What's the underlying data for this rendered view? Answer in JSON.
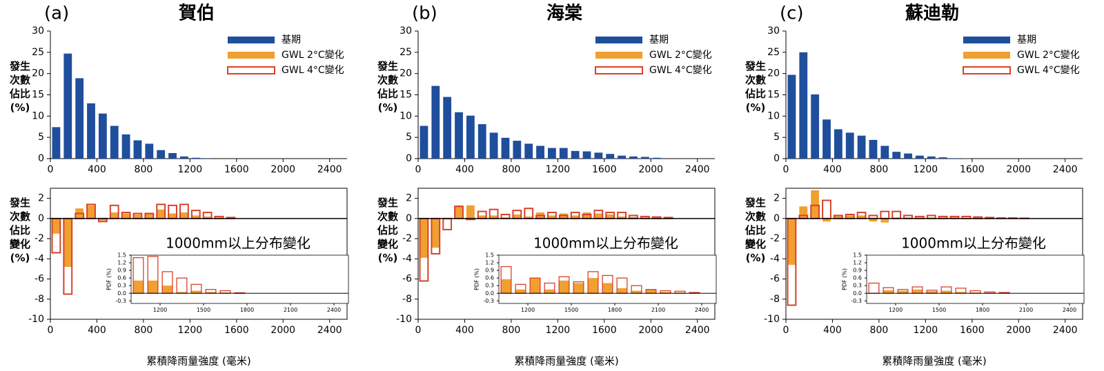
{
  "chart_data": [
    {
      "type": "bar",
      "label": "(a)",
      "title": "賀伯",
      "ylabel": "發生次數佔比(%)",
      "legend": "upper right",
      "x": [
        50,
        150,
        250,
        350,
        450,
        550,
        650,
        750,
        850,
        950,
        1050,
        1150,
        1250,
        1350
      ],
      "series": [
        {
          "name": "基期",
          "color": "#1f4e9c",
          "values": [
            7.4,
            24.7,
            18.9,
            13.0,
            10.6,
            7.7,
            5.7,
            4.3,
            3.5,
            2.0,
            1.3,
            0.5,
            0.2,
            0.1
          ]
        }
      ],
      "xlim": [
        0,
        2550
      ],
      "ylim": [
        0,
        30
      ],
      "xticks": [
        0,
        400,
        800,
        1200,
        1600,
        2000,
        2400
      ],
      "yticks": [
        0,
        5,
        10,
        15,
        20,
        25,
        30
      ]
    },
    {
      "type": "bar",
      "ylabel": "發生次數佔比變化(%)",
      "xlabel": "累積降雨量強度 (毫米)",
      "x": [
        50,
        150,
        250,
        350,
        450,
        550,
        650,
        750,
        850,
        950,
        1050,
        1150,
        1250,
        1350,
        1450,
        1550
      ],
      "series": [
        {
          "name": "GWL 2°C變化",
          "color": "#f0a030",
          "values": [
            -1.5,
            -4.8,
            1.0,
            1.3,
            -0.2,
            0.6,
            0.5,
            0.4,
            0.5,
            0.9,
            0.5,
            0.6,
            0.3,
            0.2,
            0.1,
            0.05
          ]
        },
        {
          "name": "GWL 4°C變化",
          "color": "#d9402a",
          "outline": true,
          "values": [
            -3.4,
            -7.5,
            0.5,
            1.4,
            -0.3,
            1.3,
            0.6,
            0.5,
            0.5,
            1.4,
            1.3,
            1.4,
            0.8,
            0.6,
            0.2,
            0.1
          ]
        }
      ],
      "xlim": [
        0,
        2550
      ],
      "ylim": [
        -10,
        3
      ],
      "xticks": [
        0,
        400,
        800,
        1200,
        1600,
        2000,
        2400
      ],
      "yticks": [
        -10,
        -8,
        -6,
        -4,
        -2,
        0,
        2
      ]
    },
    {
      "type": "bar",
      "title": "1000mm以上分布變化",
      "ylabel": "PDF (%)",
      "x": [
        1050,
        1150,
        1250,
        1350,
        1450,
        1550,
        1650,
        1750
      ],
      "series": [
        {
          "color": "#f0a030",
          "values": [
            0.5,
            0.5,
            0.3,
            0.05,
            0.1,
            0.05,
            0.03,
            0
          ]
        },
        {
          "color": "#d9402a",
          "outline": true,
          "values": [
            1.4,
            1.45,
            0.85,
            0.6,
            0.35,
            0.15,
            0.1,
            0.02
          ]
        }
      ],
      "xlim": [
        1000,
        2500
      ],
      "ylim": [
        -0.4,
        1.5
      ],
      "xticks": [
        1200,
        1500,
        1800,
        2100,
        2400
      ],
      "yticks": [
        -0.3,
        {
          "value": 0,
          "label": "0.0"
        },
        0.3,
        0.6,
        0.9,
        1.2,
        1.5
      ]
    },
    {
      "type": "bar",
      "label": "(b)",
      "title": "海棠",
      "ylabel": "發生次數佔比(%)",
      "legend": "upper right",
      "x": [
        50,
        150,
        250,
        350,
        450,
        550,
        650,
        750,
        850,
        950,
        1050,
        1150,
        1250,
        1350,
        1450,
        1550,
        1650,
        1750,
        1850,
        1950,
        2050
      ],
      "series": [
        {
          "name": "基期",
          "color": "#1f4e9c",
          "values": [
            7.7,
            17.1,
            14.5,
            10.9,
            10.1,
            8.1,
            6.1,
            4.9,
            4.2,
            3.5,
            3.0,
            2.5,
            2.5,
            1.8,
            1.7,
            1.4,
            1.1,
            0.7,
            0.5,
            0.4,
            0.2
          ]
        }
      ],
      "xlim": [
        0,
        2550
      ],
      "ylim": [
        0,
        30
      ],
      "xticks": [
        0,
        400,
        800,
        1200,
        1600,
        2000,
        2400
      ],
      "yticks": [
        0,
        5,
        10,
        15,
        20,
        25,
        30
      ]
    },
    {
      "type": "bar",
      "ylabel": "發生次數佔比變化(%)",
      "xlabel": "累積降雨量強度 (毫米)",
      "x": [
        50,
        150,
        250,
        350,
        450,
        550,
        650,
        750,
        850,
        950,
        1050,
        1150,
        1250,
        1350,
        1450,
        1550,
        1650,
        1750,
        1850,
        1950,
        2050,
        2150
      ],
      "series": [
        {
          "name": "GWL 2°C變化",
          "color": "#f0a030",
          "values": [
            -3.9,
            -2.9,
            -0.1,
            1.3,
            1.3,
            0.3,
            0.3,
            0.1,
            0.4,
            0.2,
            0.6,
            0.3,
            0.5,
            0.3,
            0.6,
            0.5,
            0.4,
            0.2,
            0.15,
            0.1,
            0.05,
            0
          ]
        },
        {
          "name": "GWL 4°C變化",
          "color": "#d9402a",
          "outline": true,
          "values": [
            -6.2,
            -3.5,
            -1.1,
            1.2,
            -0.1,
            0.7,
            0.9,
            0.4,
            0.8,
            1.0,
            0.3,
            0.6,
            0.3,
            0.6,
            0.4,
            0.8,
            0.6,
            0.6,
            0.3,
            0.2,
            0.15,
            0.1
          ]
        }
      ],
      "xlim": [
        0,
        2550
      ],
      "ylim": [
        -10,
        3
      ],
      "xticks": [
        0,
        400,
        800,
        1200,
        1600,
        2000,
        2400
      ],
      "yticks": [
        -10,
        -8,
        -6,
        -4,
        -2,
        0,
        2
      ]
    },
    {
      "type": "bar",
      "title": "1000mm以上分布變化",
      "ylabel": "PDF (%)",
      "x": [
        1050,
        1150,
        1250,
        1350,
        1450,
        1550,
        1650,
        1750,
        1850,
        1950,
        2050,
        2150,
        2250,
        2350
      ],
      "series": [
        {
          "color": "#f0a030",
          "values": [
            0.55,
            0.15,
            0.6,
            0.15,
            0.5,
            0.4,
            0.6,
            0.4,
            0.2,
            0.1,
            0.15,
            0.05,
            0.03,
            0
          ]
        },
        {
          "color": "#d9402a",
          "outline": true,
          "values": [
            1.05,
            0.35,
            0.6,
            0.4,
            0.65,
            0.45,
            0.85,
            0.7,
            0.6,
            0.3,
            0.15,
            0.1,
            0.08,
            0.03
          ]
        }
      ],
      "xlim": [
        1000,
        2500
      ],
      "ylim": [
        -0.4,
        1.5
      ],
      "xticks": [
        1200,
        1500,
        1800,
        2100,
        2400
      ],
      "yticks": [
        -0.3,
        {
          "value": 0,
          "label": "0.0"
        },
        0.3,
        0.6,
        0.9,
        1.2,
        1.5
      ]
    },
    {
      "type": "bar",
      "label": "(c)",
      "title": "蘇迪勒",
      "ylabel": "發生次數佔比(%)",
      "legend": "upper right",
      "x": [
        50,
        150,
        250,
        350,
        450,
        550,
        650,
        750,
        850,
        950,
        1050,
        1150,
        1250,
        1350,
        1450,
        1550
      ],
      "series": [
        {
          "name": "基期",
          "color": "#1f4e9c",
          "values": [
            19.7,
            25.0,
            15.1,
            9.2,
            6.9,
            6.1,
            5.4,
            4.4,
            3.0,
            1.6,
            1.2,
            0.7,
            0.5,
            0.3,
            0.1,
            0.05
          ]
        }
      ],
      "xlim": [
        0,
        2550
      ],
      "ylim": [
        0,
        30
      ],
      "xticks": [
        0,
        400,
        800,
        1200,
        1600,
        2000,
        2400
      ],
      "yticks": [
        0,
        5,
        10,
        15,
        20,
        25,
        30
      ]
    },
    {
      "type": "bar",
      "ylabel": "發生次數佔比變化(%)",
      "xlabel": "累積降雨量強度 (毫米)",
      "x": [
        50,
        150,
        250,
        350,
        450,
        550,
        650,
        750,
        850,
        950,
        1050,
        1150,
        1250,
        1350,
        1450,
        1550,
        1650,
        1750,
        1850,
        1950,
        2050
      ],
      "series": [
        {
          "name": "GWL 2°C變化",
          "color": "#f0a030",
          "values": [
            -4.6,
            1.2,
            2.8,
            -0.3,
            0.3,
            0.3,
            0.3,
            -0.3,
            -0.4,
            0.1,
            0.1,
            0.1,
            0.1,
            0.1,
            0.1,
            0.05,
            0.05,
            0.03,
            0.02,
            0.01,
            0.01
          ]
        },
        {
          "name": "GWL 4°C變化",
          "color": "#d9402a",
          "outline": true,
          "values": [
            -8.6,
            0.3,
            1.3,
            1.8,
            0.3,
            0.4,
            0.6,
            0.3,
            0.7,
            0.7,
            0.3,
            0.2,
            0.3,
            0.2,
            0.2,
            0.2,
            0.15,
            0.1,
            0.05,
            0.05,
            0.03
          ]
        }
      ],
      "xlim": [
        0,
        2550
      ],
      "ylim": [
        -10,
        3
      ],
      "xticks": [
        0,
        400,
        800,
        1200,
        1600,
        2000,
        2400
      ],
      "yticks": [
        -10,
        -8,
        -6,
        -4,
        -2,
        0,
        2
      ]
    },
    {
      "type": "bar",
      "title": "1000mm以上分布變化",
      "ylabel": "PDF (%)",
      "x": [
        1050,
        1150,
        1250,
        1350,
        1450,
        1550,
        1650,
        1750,
        1850,
        1950
      ],
      "series": [
        {
          "color": "#f0a030",
          "values": [
            0.0,
            0.12,
            0.1,
            0.15,
            0.08,
            0.1,
            0.05,
            0.03,
            0.02,
            0.01
          ]
        },
        {
          "color": "#d9402a",
          "outline": true,
          "values": [
            0.4,
            0.22,
            0.15,
            0.25,
            0.12,
            0.25,
            0.2,
            0.1,
            0.05,
            0.03
          ]
        }
      ],
      "xlim": [
        1000,
        2500
      ],
      "ylim": [
        -0.4,
        1.5
      ],
      "xticks": [
        1200,
        1500,
        1800,
        2100,
        2400
      ],
      "yticks": [
        -0.3,
        {
          "value": 0,
          "label": "0.0"
        },
        0.3,
        0.6,
        0.9,
        1.2,
        1.5
      ]
    }
  ]
}
